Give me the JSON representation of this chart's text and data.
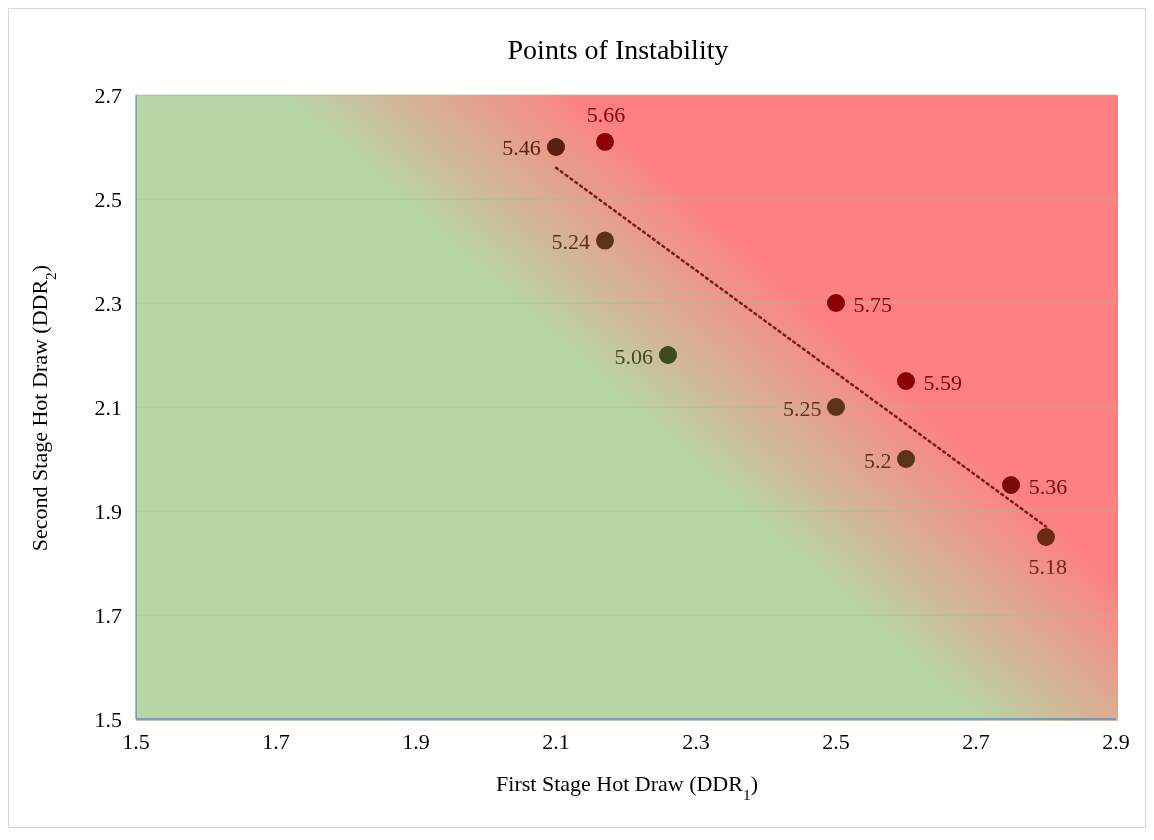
{
  "chart_data": {
    "type": "scatter",
    "title": "Points of Instability",
    "xlabel": "First Stage Hot Draw (DDR$_{1}$)",
    "ylabel": "Second Stage Hot Draw (DDR$_{2}$)",
    "xlim": [
      1.5,
      2.9
    ],
    "xticks": [
      1.5,
      1.7,
      1.9,
      2.1,
      2.3,
      2.5,
      2.7,
      2.9
    ],
    "ylim": [
      1.5,
      2.7
    ],
    "yticks": [
      1.5,
      1.7,
      1.9,
      2.1,
      2.3,
      2.5,
      2.7
    ],
    "grid": "y",
    "marker": "circle",
    "series": [
      {
        "type": "scatter",
        "x": [
          2.1,
          2.17,
          2.17,
          2.26,
          2.5,
          2.5,
          2.6,
          2.6,
          2.75,
          2.8
        ],
        "values": [
          2.6,
          2.61,
          2.42,
          2.2,
          2.3,
          2.1,
          2.15,
          2.0,
          1.95,
          1.85
        ],
        "colors": [
          "#5a1f10",
          "#8b0000",
          "#5a3318",
          "#3f4a1e",
          "#8b0000",
          "#5a3318",
          "#8b0000",
          "#5a3318",
          "#7a0a0a",
          "#6b2a14"
        ]
      },
      {
        "type": "line",
        "x": [
          2.1,
          2.8
        ],
        "values": [
          2.56,
          1.87
        ],
        "color": "#7b1a1a",
        "line_style": "dotted",
        "marker": "none"
      }
    ],
    "annotations": [
      {
        "text": "5.46",
        "x": 2.1,
        "y": 2.6
      },
      {
        "text": "5.66",
        "x": 2.17,
        "y": 2.61
      },
      {
        "text": "5.24",
        "x": 2.17,
        "y": 2.42
      },
      {
        "text": "5.06",
        "x": 2.26,
        "y": 2.2
      },
      {
        "text": "5.75",
        "x": 2.5,
        "y": 2.3
      },
      {
        "text": "5.25",
        "x": 2.5,
        "y": 2.1
      },
      {
        "text": "5.59",
        "x": 2.6,
        "y": 2.15
      },
      {
        "text": "5.2",
        "x": 2.6,
        "y": 2.0
      },
      {
        "text": "5.36",
        "x": 2.75,
        "y": 1.95
      },
      {
        "text": "5.18",
        "x": 2.8,
        "y": 1.85
      }
    ]
  }
}
